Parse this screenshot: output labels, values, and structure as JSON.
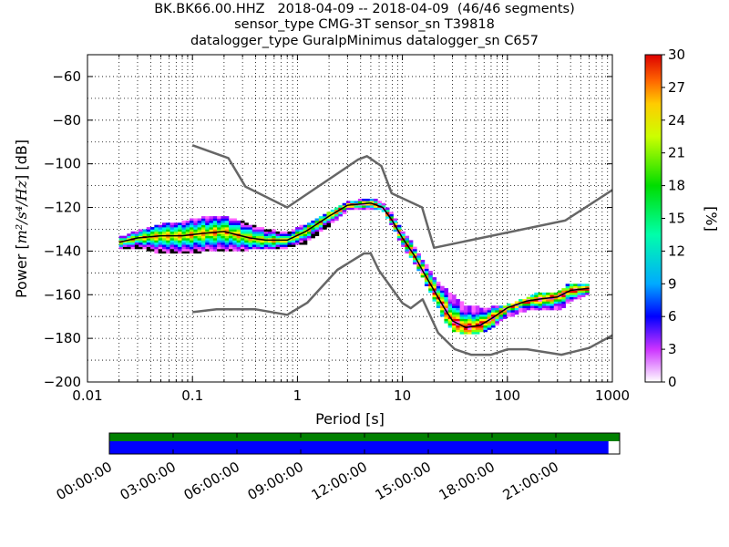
{
  "chart_data": {
    "type": "heatmap",
    "title_lines": [
      "BK.BK66.00.HHZ   2018-04-09 -- 2018-04-09  (46/46 segments)",
      "sensor_type CMG-3T sensor_sn T39818",
      "datalogger_type GuralpMinimus datalogger_sn C657"
    ],
    "xlabel": "Period [s]",
    "ylabel": "Power [m²/s⁴/Hz] [dB]",
    "ylabel_prefix": "Power [",
    "ylabel_math": "m²/s⁴/Hz",
    "ylabel_suffix": "] [dB]",
    "x_scale": "log",
    "xlim": [
      0.01,
      1000
    ],
    "ylim": [
      -200,
      -50
    ],
    "x_ticks": [
      0.01,
      0.1,
      1,
      10,
      100,
      1000
    ],
    "x_tick_labels": [
      "0.01",
      "0.1",
      "1",
      "10",
      "100",
      "1000"
    ],
    "y_ticks": [
      -200,
      -180,
      -160,
      -140,
      -120,
      -100,
      -80,
      -60
    ],
    "y_tick_labels": [
      "−200",
      "−180",
      "−160",
      "−140",
      "−120",
      "−100",
      "−80",
      "−60"
    ],
    "grid": true,
    "colorbar": {
      "label": "[%]",
      "range": [
        0,
        30
      ],
      "ticks": [
        0,
        3,
        6,
        9,
        12,
        15,
        18,
        21,
        24,
        27,
        30
      ],
      "tick_labels": [
        "0",
        "3",
        "6",
        "9",
        "12",
        "15",
        "18",
        "21",
        "24",
        "27",
        "30"
      ]
    },
    "noise_model_high": {
      "name": "NHNM",
      "color": "#666666",
      "x": [
        0.1,
        0.22,
        0.32,
        0.8,
        3.8,
        4.6,
        6.3,
        7.9,
        15.4,
        20,
        354.8,
        1000
      ],
      "y": [
        -91.5,
        -97.4,
        -110.5,
        -120,
        -98,
        -96.5,
        -101,
        -113.5,
        -120,
        -138.5,
        -126,
        -112
      ]
    },
    "noise_model_low": {
      "name": "NLNM",
      "color": "#666666",
      "x": [
        0.1,
        0.17,
        0.4,
        0.8,
        1.24,
        2.4,
        4.3,
        5,
        6,
        10,
        12,
        15.6,
        21.9,
        31.6,
        45,
        70,
        101,
        154,
        328,
        600,
        1000
      ],
      "y": [
        -168,
        -166.7,
        -166.7,
        -169.2,
        -163.7,
        -148.6,
        -141.1,
        -141.1,
        -149,
        -163.8,
        -166.2,
        -162.1,
        -177.5,
        -185,
        -187.5,
        -187.5,
        -185,
        -185,
        -187.5,
        -184.4,
        -178.6
      ]
    },
    "psd_mode": {
      "name": "mode",
      "color": "#000000",
      "x": [
        0.02,
        0.03,
        0.05,
        0.08,
        0.12,
        0.2,
        0.35,
        0.5,
        0.8,
        1.2,
        2,
        3,
        5,
        6.5,
        8,
        10,
        13,
        16,
        20,
        25,
        30,
        40,
        55,
        70,
        100,
        150,
        200,
        300,
        400,
        600
      ],
      "y": [
        -136,
        -134,
        -133,
        -133,
        -132,
        -131,
        -134,
        -135,
        -135,
        -131,
        -124,
        -119,
        -118,
        -120,
        -126,
        -134,
        -142,
        -150,
        -158,
        -166,
        -172,
        -175,
        -174,
        -171,
        -166,
        -163,
        -162,
        -161,
        -158,
        -157
      ]
    },
    "psd_distribution": {
      "x": [
        0.02,
        0.03,
        0.05,
        0.08,
        0.12,
        0.2,
        0.35,
        0.5,
        0.8,
        1.2,
        2,
        3,
        5,
        6.5,
        8,
        10,
        13,
        16,
        20,
        25,
        30,
        40,
        55,
        70,
        100,
        150,
        200,
        300,
        400,
        600
      ],
      "y_low": [
        -139,
        -138,
        -141,
        -141,
        -140,
        -140,
        -139,
        -139,
        -138,
        -136,
        -128,
        -121,
        -120,
        -121,
        -128,
        -137,
        -145,
        -153,
        -162,
        -171,
        -176,
        -178,
        -177,
        -175,
        -170,
        -167,
        -167,
        -167,
        -163,
        -159
      ],
      "y_high": [
        -134,
        -131,
        -128,
        -127,
        -125,
        -124,
        -128,
        -130,
        -132,
        -128,
        -122,
        -118,
        -116,
        -118,
        -123,
        -131,
        -138,
        -145,
        -152,
        -157,
        -160,
        -165,
        -166,
        -166,
        -165,
        -162,
        -159,
        -159,
        -155,
        -155
      ]
    },
    "data_coverage": {
      "start_time": "00:00:00",
      "end_time": "24:00:00",
      "coverage_fraction": 0.978,
      "available_color": "#008000",
      "processed_color": "#0000ff",
      "tick_labels": [
        "00:00:00",
        "03:00:00",
        "06:00:00",
        "09:00:00",
        "12:00:00",
        "15:00:00",
        "18:00:00",
        "21:00:00"
      ]
    }
  }
}
